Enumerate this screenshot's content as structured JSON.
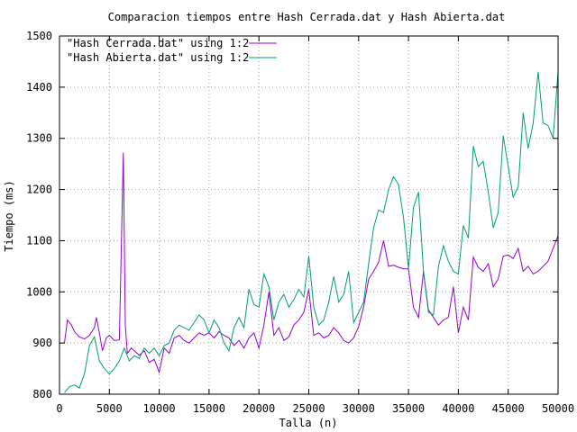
{
  "chart_data": {
    "type": "line",
    "title": "Comparacion tiempos entre Hash Cerrada.dat y Hash Abierta.dat",
    "xlabel": "Talla (n)",
    "ylabel": "Tiempo (ms)",
    "xlim": [
      0,
      50000
    ],
    "ylim": [
      800,
      1500
    ],
    "xticks": [
      0,
      5000,
      10000,
      15000,
      20000,
      25000,
      30000,
      35000,
      40000,
      45000,
      50000
    ],
    "yticks": [
      800,
      900,
      1000,
      1100,
      1200,
      1300,
      1400,
      1500
    ],
    "xtick_labels": [
      "0",
      "5000",
      "10000",
      "15000",
      "20000",
      "25000",
      "30000",
      "35000",
      "40000",
      "45000",
      "50000"
    ],
    "ytick_labels": [
      "800",
      "900",
      "1000",
      "1100",
      "1200",
      "1300",
      "1400",
      "1500"
    ],
    "grid": true,
    "legend_position": "top-left",
    "series": [
      {
        "name": "\"Hash Cerrada.dat\" using 1:2",
        "color": "#9400d3",
        "points": [
          [
            500,
            900
          ],
          [
            800,
            945
          ],
          [
            1200,
            935
          ],
          [
            1500,
            922
          ],
          [
            2000,
            912
          ],
          [
            2500,
            908
          ],
          [
            3000,
            915
          ],
          [
            3500,
            930
          ],
          [
            3700,
            950
          ],
          [
            4000,
            920
          ],
          [
            4300,
            885
          ],
          [
            4700,
            910
          ],
          [
            5000,
            915
          ],
          [
            5500,
            905
          ],
          [
            6000,
            906
          ],
          [
            6400,
            1272
          ],
          [
            6600,
            935
          ],
          [
            6800,
            880
          ],
          [
            7200,
            890
          ],
          [
            7500,
            885
          ],
          [
            8000,
            876
          ],
          [
            8500,
            885
          ],
          [
            9000,
            862
          ],
          [
            9500,
            868
          ],
          [
            10000,
            843
          ],
          [
            10500,
            890
          ],
          [
            11000,
            880
          ],
          [
            11500,
            910
          ],
          [
            12000,
            915
          ],
          [
            12500,
            905
          ],
          [
            13000,
            900
          ],
          [
            13500,
            910
          ],
          [
            14000,
            920
          ],
          [
            14500,
            915
          ],
          [
            15000,
            920
          ],
          [
            15500,
            910
          ],
          [
            16000,
            922
          ],
          [
            16500,
            915
          ],
          [
            17000,
            910
          ],
          [
            17500,
            895
          ],
          [
            18000,
            905
          ],
          [
            18500,
            890
          ],
          [
            19000,
            910
          ],
          [
            19500,
            920
          ],
          [
            20000,
            890
          ],
          [
            20500,
            935
          ],
          [
            21000,
            1000
          ],
          [
            21500,
            915
          ],
          [
            22000,
            930
          ],
          [
            22500,
            905
          ],
          [
            23000,
            912
          ],
          [
            23500,
            935
          ],
          [
            24000,
            945
          ],
          [
            24500,
            960
          ],
          [
            25000,
            1005
          ],
          [
            25500,
            915
          ],
          [
            26000,
            920
          ],
          [
            26500,
            910
          ],
          [
            27000,
            915
          ],
          [
            27500,
            930
          ],
          [
            28000,
            920
          ],
          [
            28500,
            905
          ],
          [
            29000,
            900
          ],
          [
            29500,
            910
          ],
          [
            30000,
            932
          ],
          [
            30500,
            970
          ],
          [
            31000,
            1025
          ],
          [
            31500,
            1040
          ],
          [
            32000,
            1058
          ],
          [
            32500,
            1100
          ],
          [
            33000,
            1050
          ],
          [
            33500,
            1052
          ],
          [
            34000,
            1048
          ],
          [
            34500,
            1045
          ],
          [
            35000,
            1045
          ],
          [
            35500,
            970
          ],
          [
            36000,
            950
          ],
          [
            36500,
            1040
          ],
          [
            37000,
            965
          ],
          [
            37500,
            950
          ],
          [
            38000,
            935
          ],
          [
            38500,
            945
          ],
          [
            39000,
            950
          ],
          [
            39500,
            1010
          ],
          [
            40000,
            920
          ],
          [
            40500,
            970
          ],
          [
            41000,
            945
          ],
          [
            41500,
            1068
          ],
          [
            42000,
            1048
          ],
          [
            42500,
            1040
          ],
          [
            43000,
            1055
          ],
          [
            43500,
            1010
          ],
          [
            44000,
            1025
          ],
          [
            44500,
            1070
          ],
          [
            45000,
            1072
          ],
          [
            45500,
            1065
          ],
          [
            46000,
            1085
          ],
          [
            46500,
            1040
          ],
          [
            47000,
            1050
          ],
          [
            47500,
            1035
          ],
          [
            48000,
            1040
          ],
          [
            48500,
            1050
          ],
          [
            49000,
            1060
          ],
          [
            49500,
            1085
          ],
          [
            50000,
            1110
          ]
        ]
      },
      {
        "name": "\"Hash Abierta.dat\" using 1:2",
        "color": "#009e73",
        "points": [
          [
            500,
            803
          ],
          [
            1000,
            815
          ],
          [
            1500,
            818
          ],
          [
            2000,
            812
          ],
          [
            2500,
            840
          ],
          [
            3000,
            895
          ],
          [
            3500,
            912
          ],
          [
            4000,
            865
          ],
          [
            4500,
            850
          ],
          [
            5000,
            840
          ],
          [
            5500,
            850
          ],
          [
            6000,
            865
          ],
          [
            6500,
            890
          ],
          [
            7000,
            865
          ],
          [
            7500,
            875
          ],
          [
            8000,
            870
          ],
          [
            8500,
            890
          ],
          [
            9000,
            880
          ],
          [
            9500,
            890
          ],
          [
            10000,
            875
          ],
          [
            10500,
            895
          ],
          [
            11000,
            900
          ],
          [
            11500,
            925
          ],
          [
            12000,
            935
          ],
          [
            12500,
            930
          ],
          [
            13000,
            925
          ],
          [
            13500,
            940
          ],
          [
            14000,
            955
          ],
          [
            14500,
            945
          ],
          [
            15000,
            920
          ],
          [
            15500,
            945
          ],
          [
            16000,
            930
          ],
          [
            16500,
            900
          ],
          [
            17000,
            885
          ],
          [
            17500,
            930
          ],
          [
            18000,
            950
          ],
          [
            18500,
            930
          ],
          [
            19000,
            1005
          ],
          [
            19500,
            975
          ],
          [
            20000,
            970
          ],
          [
            20500,
            1035
          ],
          [
            21000,
            1010
          ],
          [
            21500,
            945
          ],
          [
            22000,
            980
          ],
          [
            22500,
            995
          ],
          [
            23000,
            970
          ],
          [
            23500,
            985
          ],
          [
            24000,
            1005
          ],
          [
            24500,
            990
          ],
          [
            25000,
            1070
          ],
          [
            25500,
            970
          ],
          [
            26000,
            935
          ],
          [
            26500,
            945
          ],
          [
            27000,
            980
          ],
          [
            27500,
            1030
          ],
          [
            28000,
            980
          ],
          [
            28500,
            995
          ],
          [
            29000,
            1040
          ],
          [
            29500,
            940
          ],
          [
            30000,
            960
          ],
          [
            30500,
            980
          ],
          [
            31000,
            1055
          ],
          [
            31500,
            1125
          ],
          [
            32000,
            1160
          ],
          [
            32500,
            1155
          ],
          [
            33000,
            1200
          ],
          [
            33500,
            1225
          ],
          [
            34000,
            1210
          ],
          [
            34500,
            1145
          ],
          [
            35000,
            1045
          ],
          [
            35500,
            1165
          ],
          [
            36000,
            1195
          ],
          [
            36500,
            1040
          ],
          [
            37000,
            960
          ],
          [
            37500,
            955
          ],
          [
            38000,
            1050
          ],
          [
            38500,
            1090
          ],
          [
            39000,
            1060
          ],
          [
            39500,
            1040
          ],
          [
            40000,
            1035
          ],
          [
            40500,
            1130
          ],
          [
            41000,
            1105
          ],
          [
            41500,
            1285
          ],
          [
            42000,
            1245
          ],
          [
            42500,
            1255
          ],
          [
            43000,
            1195
          ],
          [
            43500,
            1125
          ],
          [
            44000,
            1155
          ],
          [
            44500,
            1305
          ],
          [
            45000,
            1245
          ],
          [
            45500,
            1185
          ],
          [
            46000,
            1205
          ],
          [
            46500,
            1350
          ],
          [
            47000,
            1280
          ],
          [
            47500,
            1330
          ],
          [
            48000,
            1430
          ],
          [
            48500,
            1330
          ],
          [
            49000,
            1325
          ],
          [
            49500,
            1300
          ],
          [
            50000,
            1430
          ]
        ]
      }
    ]
  }
}
